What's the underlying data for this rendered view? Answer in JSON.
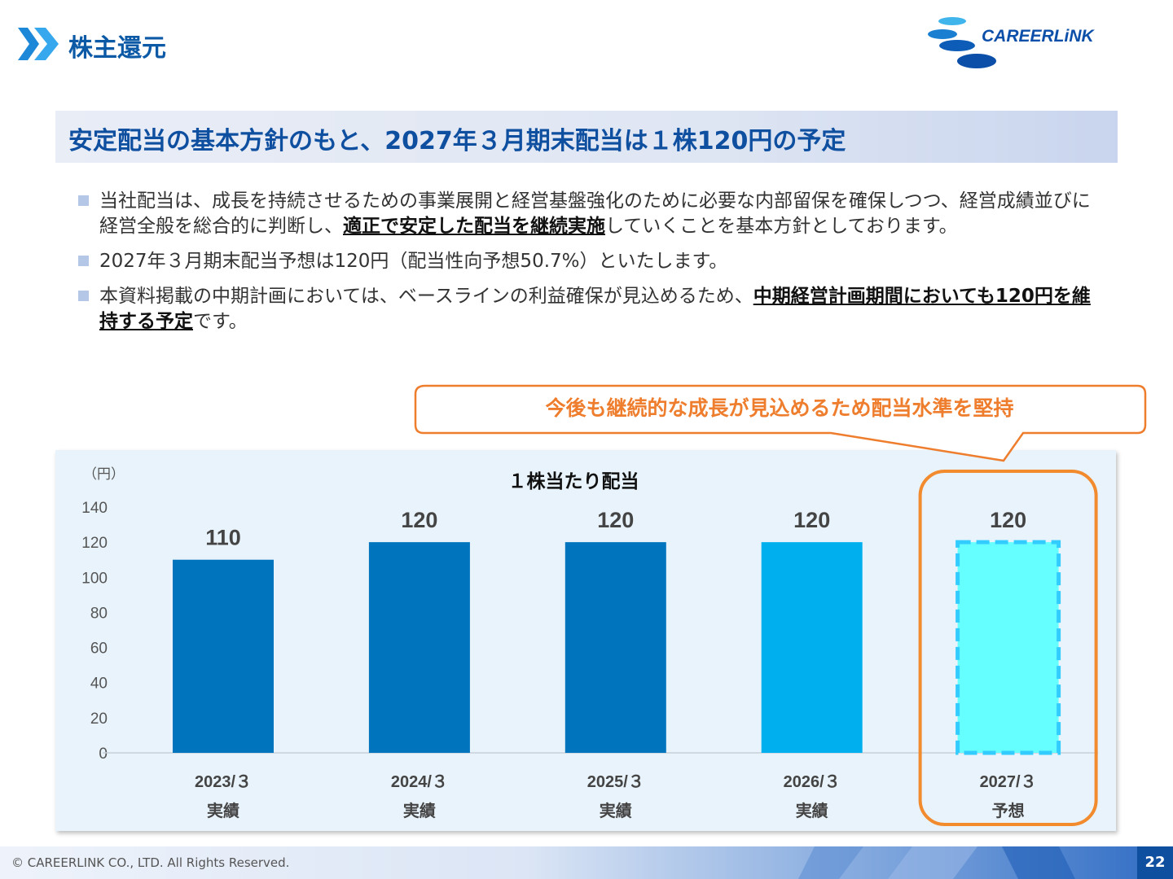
{
  "header": {
    "title": "株主還元",
    "logo_text": "CAREERLiNK"
  },
  "banner": {
    "text": "安定配当の基本方針のもと、2027年３月期末配当は１株120円の予定"
  },
  "bullets": [
    {
      "pre": "当社配当は、成長を持続させるための事業展開と経営基盤強化のために必要な内部留保を確保しつつ、経営成績並びに経営全般を総合的に判断し、",
      "emph": "適正で安定した配当を継続実施",
      "post": "していくことを基本方針としております。"
    },
    {
      "pre": "2027年３月期末配当予想は120円（配当性向予想50.7%）といたします。",
      "emph": "",
      "post": ""
    },
    {
      "pre": "本資料掲載の中期計画においては、ベースラインの利益確保が見込めるため、",
      "emph": "中期経営計画期間においても120円を維持する予定",
      "post": "です。"
    }
  ],
  "callout": {
    "text": "今後も継続的な成長が見込めるため配当水準を堅持"
  },
  "chart_data": {
    "type": "bar",
    "title": "１株当たり配当",
    "unit_label": "（円）",
    "categories": [
      "2023/３",
      "2024/３",
      "2025/３",
      "2026/３",
      "2027/３"
    ],
    "sublabels": [
      "実績",
      "実績",
      "実績",
      "実績",
      "予想"
    ],
    "values": [
      110,
      120,
      120,
      120,
      120
    ],
    "ylim": [
      0,
      140
    ],
    "yticks": [
      0,
      20,
      40,
      60,
      80,
      100,
      120,
      140
    ],
    "colors": [
      "#0074bd",
      "#0074bd",
      "#0074bd",
      "#00b0ee",
      "#66ffff"
    ],
    "forecast_border_color": "#33ccff",
    "highlight_color": "#f28a2e",
    "grid": false,
    "legend": "none"
  },
  "footer": {
    "copyright": "© CAREERLINK CO., LTD. All Rights Reserved.",
    "page": "22"
  }
}
